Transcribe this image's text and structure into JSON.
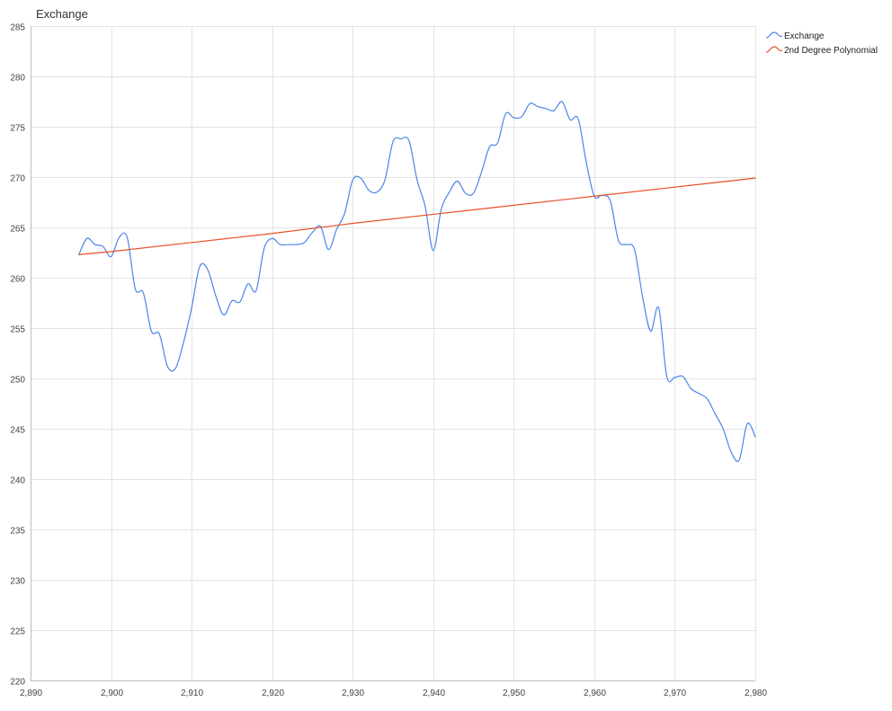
{
  "chart_data": {
    "type": "line",
    "title": "Exchange",
    "xlabel": "",
    "ylabel": "",
    "xlim": [
      2890,
      2980
    ],
    "ylim": [
      220,
      285
    ],
    "x_ticks": [
      2890,
      2900,
      2910,
      2920,
      2930,
      2940,
      2950,
      2960,
      2970,
      2980
    ],
    "x_tick_labels": [
      "2,890",
      "2,900",
      "2,910",
      "2,920",
      "2,930",
      "2,940",
      "2,950",
      "2,960",
      "2,970",
      "2,980"
    ],
    "y_ticks": [
      220,
      225,
      230,
      235,
      240,
      245,
      250,
      255,
      260,
      265,
      270,
      275,
      280,
      285
    ],
    "y_tick_labels": [
      "220",
      "225",
      "230",
      "235",
      "240",
      "245",
      "250",
      "255",
      "260",
      "265",
      "270",
      "275",
      "280",
      "285"
    ],
    "grid": true,
    "legend_position": "top-right",
    "series": [
      {
        "name": "Exchange",
        "color": "#4a86e8",
        "smooth": true,
        "x": [
          2896,
          2897,
          2898,
          2899,
          2900,
          2901,
          2902,
          2903,
          2904,
          2905,
          2906,
          2907,
          2908,
          2909,
          2910,
          2911,
          2912,
          2913,
          2914,
          2915,
          2916,
          2917,
          2918,
          2919,
          2920,
          2921,
          2922,
          2923,
          2924,
          2925,
          2926,
          2927,
          2928,
          2929,
          2930,
          2931,
          2932,
          2933,
          2934,
          2935,
          2936,
          2937,
          2938,
          2939,
          2940,
          2941,
          2942,
          2943,
          2944,
          2945,
          2946,
          2947,
          2948,
          2949,
          2950,
          2951,
          2952,
          2953,
          2954,
          2955,
          2956,
          2957,
          2958,
          2959,
          2960,
          2961,
          2962,
          2963,
          2964,
          2965,
          2966,
          2967,
          2968,
          2969,
          2970,
          2971,
          2972,
          2973,
          2974,
          2975,
          2976,
          2977,
          2978,
          2979,
          2980
        ],
        "values": [
          262.3,
          263.9,
          263.3,
          263.1,
          262.1,
          264.0,
          264.0,
          258.9,
          258.5,
          254.7,
          254.4,
          251.2,
          251.0,
          253.6,
          257.0,
          261.1,
          260.8,
          258.2,
          256.3,
          257.7,
          257.6,
          259.4,
          258.7,
          262.9,
          263.9,
          263.3,
          263.3,
          263.3,
          263.5,
          264.5,
          265.1,
          262.8,
          264.8,
          266.4,
          269.7,
          269.9,
          268.7,
          268.5,
          269.7,
          273.5,
          273.8,
          273.6,
          269.7,
          267.1,
          262.7,
          266.8,
          268.5,
          269.6,
          268.4,
          268.4,
          270.5,
          273.0,
          273.4,
          276.3,
          275.9,
          276.0,
          277.3,
          277.0,
          276.8,
          276.6,
          277.5,
          275.7,
          275.8,
          271.5,
          268.1,
          268.2,
          267.6,
          263.7,
          263.3,
          262.8,
          258.1,
          254.7,
          257.0,
          250.2,
          250.1,
          250.2,
          249.0,
          248.5,
          248.0,
          246.5,
          245.0,
          242.7,
          241.9,
          245.5,
          244.2
        ]
      },
      {
        "name": "2nd Degree Polynomial",
        "color": "#e8502a",
        "smooth": false,
        "x": [
          2896,
          2900,
          2910,
          2920,
          2930,
          2940,
          2950,
          2960,
          2970,
          2980
        ],
        "values": [
          262.3,
          262.6,
          263.5,
          264.4,
          265.4,
          266.3,
          267.2,
          268.1,
          269.0,
          269.9
        ]
      }
    ]
  }
}
